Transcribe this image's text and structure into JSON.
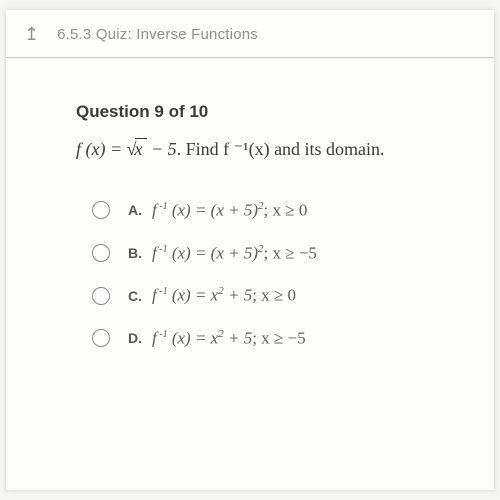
{
  "topbar": {
    "breadcrumb": "6.5.3 Quiz:  Inverse Functions",
    "back_icon": "↥"
  },
  "question": {
    "number_label": "Question 9 of 10",
    "function_lhs": "f (x) = ",
    "radical_inner": "x",
    "minus_five": " − 5",
    "tail": ". Find f ⁻¹(x) and its domain."
  },
  "options": {
    "a": {
      "letter": "A.",
      "expr_pre": "f",
      "inv": " -1",
      "expr_post": " (x) = (x + 5)",
      "power": "2",
      "domain": "; x ≥ 0"
    },
    "b": {
      "letter": "B.",
      "expr_pre": "f",
      "inv": " -1",
      "expr_post": " (x) = (x + 5)",
      "power": "2",
      "domain": "; x ≥ −5"
    },
    "c": {
      "letter": "C.",
      "expr_pre": "f",
      "inv": " -1",
      "expr_post": " (x) = x",
      "power": "2",
      "extra": " + 5",
      "domain": "; x ≥ 0"
    },
    "d": {
      "letter": "D.",
      "expr_pre": "f",
      "inv": " -1",
      "expr_post": " (x) = x",
      "power": "2",
      "extra": " + 5",
      "domain": "; x ≥ −5"
    }
  },
  "colors": {
    "bg": "#fdfdfb",
    "muted": "#8f8f8f",
    "text": "#3b3b3b",
    "choice": "#5c5c5c"
  }
}
